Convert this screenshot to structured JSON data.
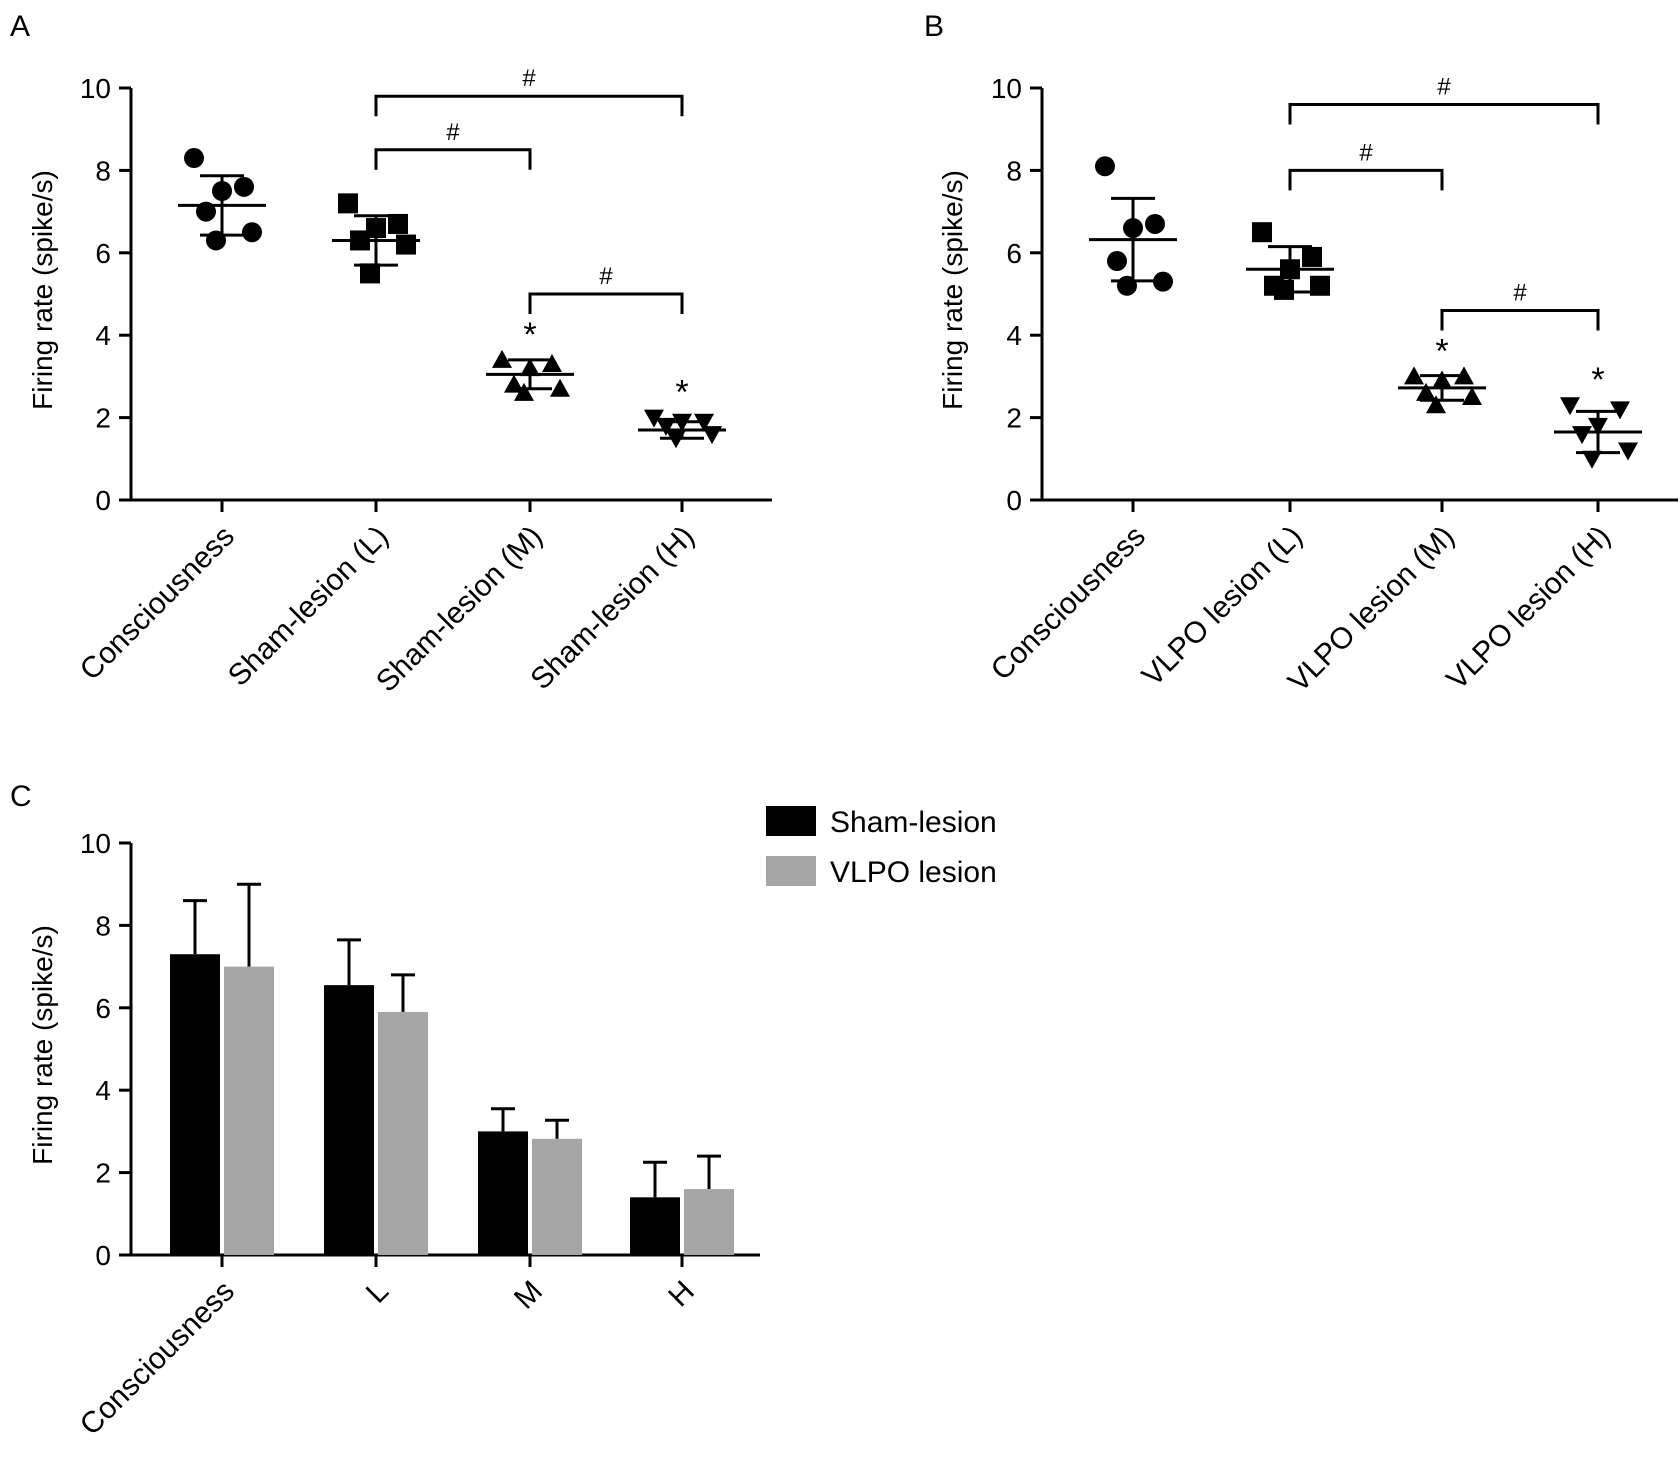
{
  "panels": {
    "A": {
      "letter": "A"
    },
    "B": {
      "letter": "B"
    },
    "C": {
      "letter": "C"
    }
  },
  "chart_data": [
    {
      "id": "A",
      "type": "scatter",
      "ylabel": "Firing rate (spike/s)",
      "ylim": [
        0,
        10
      ],
      "yticks": [
        0,
        2,
        4,
        6,
        8,
        10
      ],
      "categories": [
        "Consciousness",
        "Sham-lesion (L)",
        "Sham-lesion (M)",
        "Sham-lesion (H)"
      ],
      "markers": [
        "circle",
        "square",
        "triangle-up",
        "triangle-down"
      ],
      "points": [
        [
          8.3,
          7.6,
          7.5,
          7.0,
          6.5,
          6.3
        ],
        [
          7.2,
          6.7,
          6.6,
          6.3,
          6.2,
          5.5
        ],
        [
          3.4,
          3.3,
          3.2,
          2.8,
          2.7,
          2.6
        ],
        [
          2.0,
          1.9,
          1.9,
          1.8,
          1.6,
          1.5
        ]
      ],
      "means": [
        7.15,
        6.3,
        3.05,
        1.7
      ],
      "sd": [
        0.72,
        0.6,
        0.35,
        0.2
      ],
      "brackets": [
        {
          "from": 1,
          "to": 3,
          "level": 9.8,
          "label": "#"
        },
        {
          "from": 1,
          "to": 2,
          "level": 8.5,
          "label": "#"
        },
        {
          "from": 2,
          "to": 3,
          "level": 5.0,
          "label": "#"
        }
      ],
      "stars": [
        {
          "index": 2,
          "label": "*"
        },
        {
          "index": 3,
          "label": "*"
        }
      ]
    },
    {
      "id": "B",
      "type": "scatter",
      "ylabel": "Firing rate (spike/s)",
      "ylim": [
        0,
        10
      ],
      "yticks": [
        0,
        2,
        4,
        6,
        8,
        10
      ],
      "categories": [
        "Consciousness",
        "VLPO lesion (L)",
        "VLPO lesion (M)",
        "VLPO lesion (H)"
      ],
      "markers": [
        "circle",
        "square",
        "triangle-up",
        "triangle-down"
      ],
      "points": [
        [
          8.1,
          6.7,
          6.6,
          5.8,
          5.3,
          5.2
        ],
        [
          6.5,
          5.9,
          5.6,
          5.2,
          5.2,
          5.1
        ],
        [
          3.0,
          3.0,
          2.9,
          2.6,
          2.5,
          2.3
        ],
        [
          2.3,
          2.2,
          1.8,
          1.6,
          1.2,
          1.0
        ]
      ],
      "means": [
        6.32,
        5.6,
        2.72,
        1.65
      ],
      "sd": [
        1.0,
        0.55,
        0.3,
        0.5
      ],
      "brackets": [
        {
          "from": 1,
          "to": 3,
          "level": 9.6,
          "label": "#"
        },
        {
          "from": 1,
          "to": 2,
          "level": 8.0,
          "label": "#"
        },
        {
          "from": 2,
          "to": 3,
          "level": 4.6,
          "label": "#"
        }
      ],
      "stars": [
        {
          "index": 2,
          "label": "*"
        },
        {
          "index": 3,
          "label": "*"
        }
      ]
    },
    {
      "id": "C",
      "type": "bar",
      "ylabel": "Firing rate (spike/s)",
      "ylim": [
        0,
        10
      ],
      "yticks": [
        0,
        2,
        4,
        6,
        8,
        10
      ],
      "categories": [
        "Consciousness",
        "L",
        "M",
        "H"
      ],
      "series": [
        {
          "name": "Sham-lesion",
          "color": "#000000",
          "values": [
            7.3,
            6.55,
            3.0,
            1.4
          ],
          "errors": [
            1.3,
            1.1,
            0.55,
            0.85
          ]
        },
        {
          "name": "VLPO lesion",
          "color": "#a6a6a6",
          "values": [
            7.0,
            5.9,
            2.82,
            1.6
          ],
          "errors": [
            2.0,
            0.9,
            0.45,
            0.8
          ]
        }
      ],
      "legend_position": "top-right"
    }
  ]
}
